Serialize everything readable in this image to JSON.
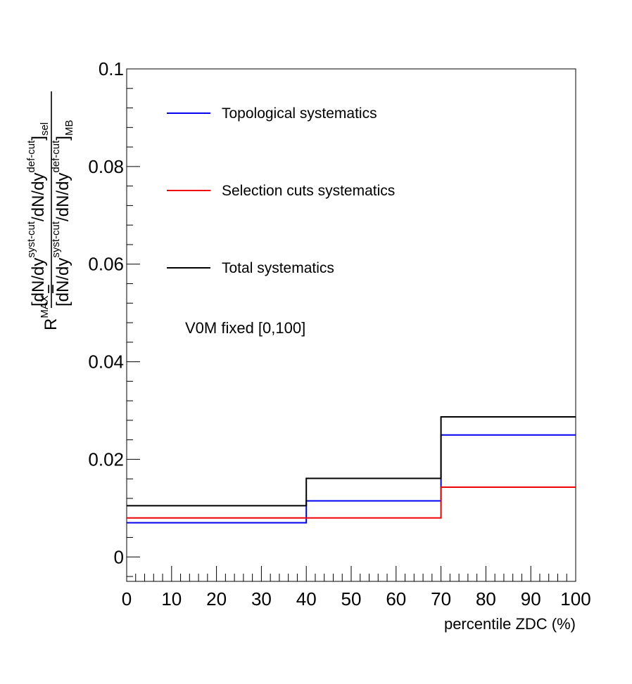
{
  "chart_data": {
    "type": "line",
    "subtype": "step-histogram",
    "xlabel": "percentile ZDC (%)",
    "ylabel": {
      "prefix": "R",
      "prefix_sup": "MAX",
      "equals": "=",
      "numerator": "[dN/dy",
      "numerator_sup1": "syst-cut",
      "numerator_mid": "/dN/dy",
      "numerator_sup2": "def-cut",
      "numerator_end": "]",
      "numerator_sub": "sel",
      "denominator": "[dN/dy",
      "denominator_sup1": "syst-cut",
      "denominator_mid": "/dN/dy",
      "denominator_sup2": "def-cut",
      "denominator_end": "]",
      "denominator_sub": "MB"
    },
    "xlim": [
      0,
      100
    ],
    "ylim": [
      -0.005,
      0.1
    ],
    "x_ticks": [
      0,
      10,
      20,
      30,
      40,
      50,
      60,
      70,
      80,
      90,
      100
    ],
    "x_tick_labels": [
      "0",
      "10",
      "20",
      "30",
      "40",
      "50",
      "60",
      "70",
      "80",
      "90",
      "100"
    ],
    "y_ticks": [
      0,
      0.02,
      0.04,
      0.06,
      0.08,
      0.1
    ],
    "y_tick_labels": [
      "0",
      "0.02",
      "0.04",
      "0.06",
      "0.08",
      "0.1"
    ],
    "bin_edges": [
      0,
      40,
      70,
      100
    ],
    "grid": false,
    "legend_position": "top-left",
    "series": [
      {
        "name": "Topological systematics",
        "color": "#0000ee",
        "values": [
          0.007,
          0.0115,
          0.025
        ]
      },
      {
        "name": "Selection cuts systematics",
        "color": "#ee0000",
        "values": [
          0.008,
          0.008,
          0.0143
        ]
      },
      {
        "name": "Total systematics",
        "color": "#000000",
        "values": [
          0.0105,
          0.0161,
          0.0287
        ]
      }
    ],
    "annotation": "V0M fixed [0,100]"
  }
}
